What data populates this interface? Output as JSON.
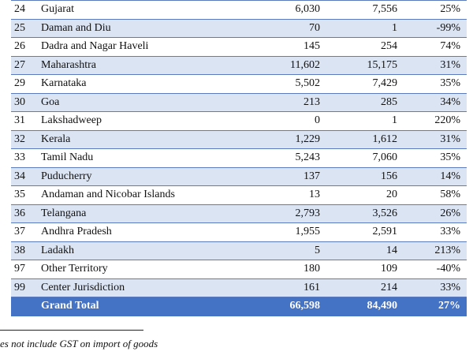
{
  "table": {
    "rows": [
      {
        "code": "24",
        "state": "Gujarat",
        "v1": "6,030",
        "v2": "7,556",
        "growth": "25%"
      },
      {
        "code": "25",
        "state": "Daman and Diu",
        "v1": "70",
        "v2": "1",
        "growth": "-99%"
      },
      {
        "code": "26",
        "state": "Dadra and Nagar Haveli",
        "v1": "145",
        "v2": "254",
        "growth": "74%"
      },
      {
        "code": "27",
        "state": "Maharashtra",
        "v1": "11,602",
        "v2": "15,175",
        "growth": "31%"
      },
      {
        "code": "29",
        "state": "Karnataka",
        "v1": "5,502",
        "v2": "7,429",
        "growth": "35%"
      },
      {
        "code": "30",
        "state": "Goa",
        "v1": "213",
        "v2": "285",
        "growth": "34%"
      },
      {
        "code": "31",
        "state": "Lakshadweep",
        "v1": "0",
        "v2": "1",
        "growth": "220%"
      },
      {
        "code": "32",
        "state": "Kerala",
        "v1": "1,229",
        "v2": "1,612",
        "growth": "31%"
      },
      {
        "code": "33",
        "state": "Tamil Nadu",
        "v1": "5,243",
        "v2": "7,060",
        "growth": "35%"
      },
      {
        "code": "34",
        "state": "Puducherry",
        "v1": "137",
        "v2": "156",
        "growth": "14%"
      },
      {
        "code": "35",
        "state": "Andaman and Nicobar Islands",
        "v1": "13",
        "v2": "20",
        "growth": "58%"
      },
      {
        "code": "36",
        "state": "Telangana",
        "v1": "2,793",
        "v2": "3,526",
        "growth": "26%"
      },
      {
        "code": "37",
        "state": "Andhra Pradesh",
        "v1": "1,955",
        "v2": "2,591",
        "growth": "33%"
      },
      {
        "code": "38",
        "state": "Ladakh",
        "v1": "5",
        "v2": "14",
        "growth": "213%"
      },
      {
        "code": "97",
        "state": "Other Territory",
        "v1": "180",
        "v2": "109",
        "growth": "-40%"
      },
      {
        "code": "99",
        "state": "Center Jurisdiction",
        "v1": "161",
        "v2": "214",
        "growth": "33%"
      }
    ],
    "total": {
      "label": "Grand Total",
      "v1": "66,598",
      "v2": "84,490",
      "growth": "27%"
    }
  },
  "footnote": "es not include GST on import of goods",
  "colors": {
    "row_band": "#dbe4f3",
    "row_border": "#5b7bbd",
    "total_bg": "#4472c4",
    "total_text": "#ffffff"
  }
}
